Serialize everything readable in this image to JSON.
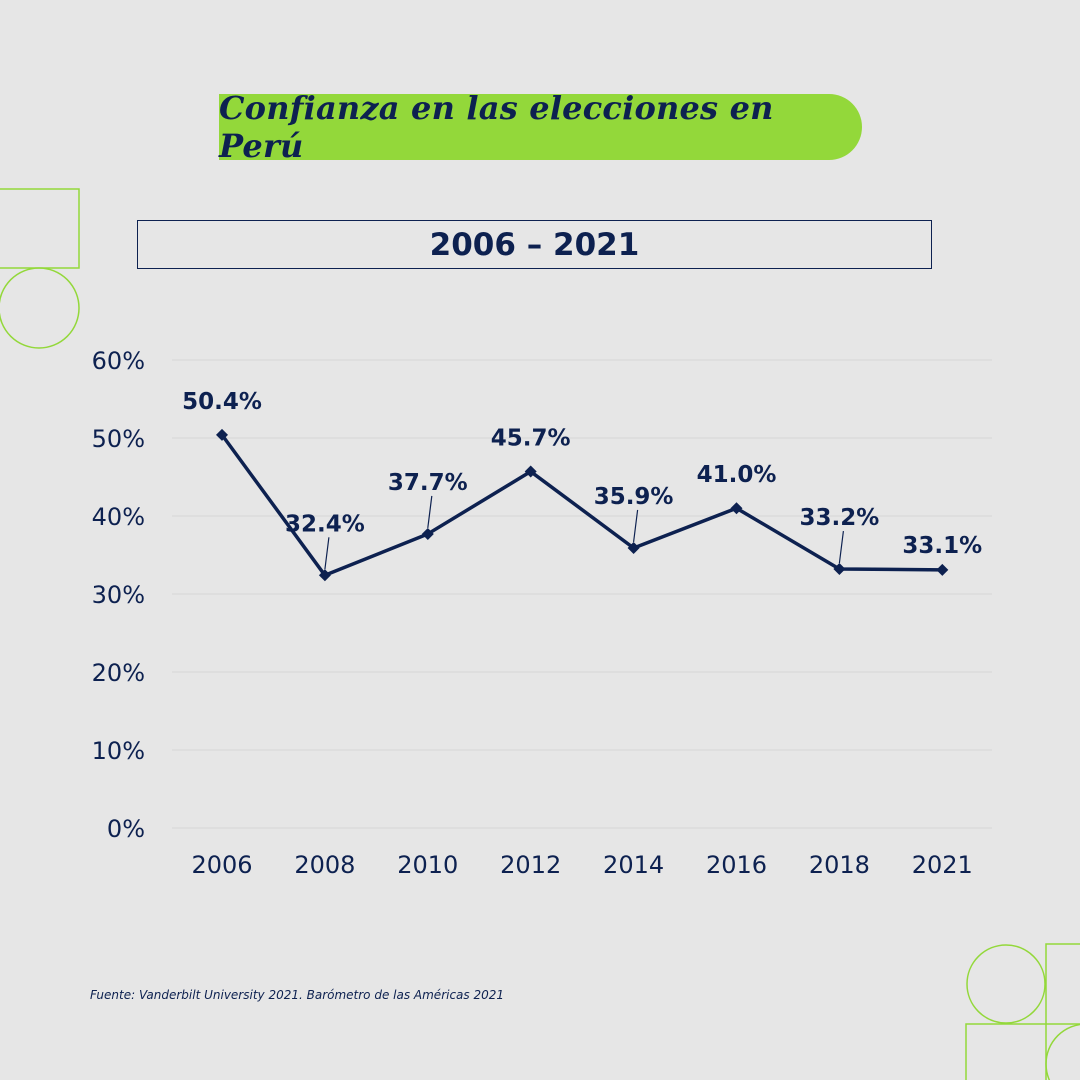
{
  "title": "Confianza en las elecciones en Perú",
  "range_label": "2006 – 2021",
  "source": "Fuente: Vanderbilt University 2021. Barómetro de las Américas 2021",
  "colors": {
    "background": "#e6e6e6",
    "accent_green": "#93d83a",
    "navy": "#0d2150",
    "grid": "#d6d6d6"
  },
  "chart_data": {
    "type": "line",
    "categories": [
      "2006",
      "2008",
      "2010",
      "2012",
      "2014",
      "2016",
      "2018",
      "2021"
    ],
    "values": [
      50.4,
      32.4,
      37.7,
      45.7,
      35.9,
      41.0,
      33.2,
      33.1
    ],
    "data_labels": [
      "50.4%",
      "32.4%",
      "37.7%",
      "45.7%",
      "35.9%",
      "41.0%",
      "33.2%",
      "33.1%"
    ],
    "yticks": [
      0,
      10,
      20,
      30,
      40,
      50,
      60
    ],
    "ytick_labels": [
      "0%",
      "10%",
      "20%",
      "30%",
      "40%",
      "50%",
      "60%"
    ],
    "ylim": [
      0,
      60
    ],
    "grid": true,
    "marker": "diamond"
  }
}
